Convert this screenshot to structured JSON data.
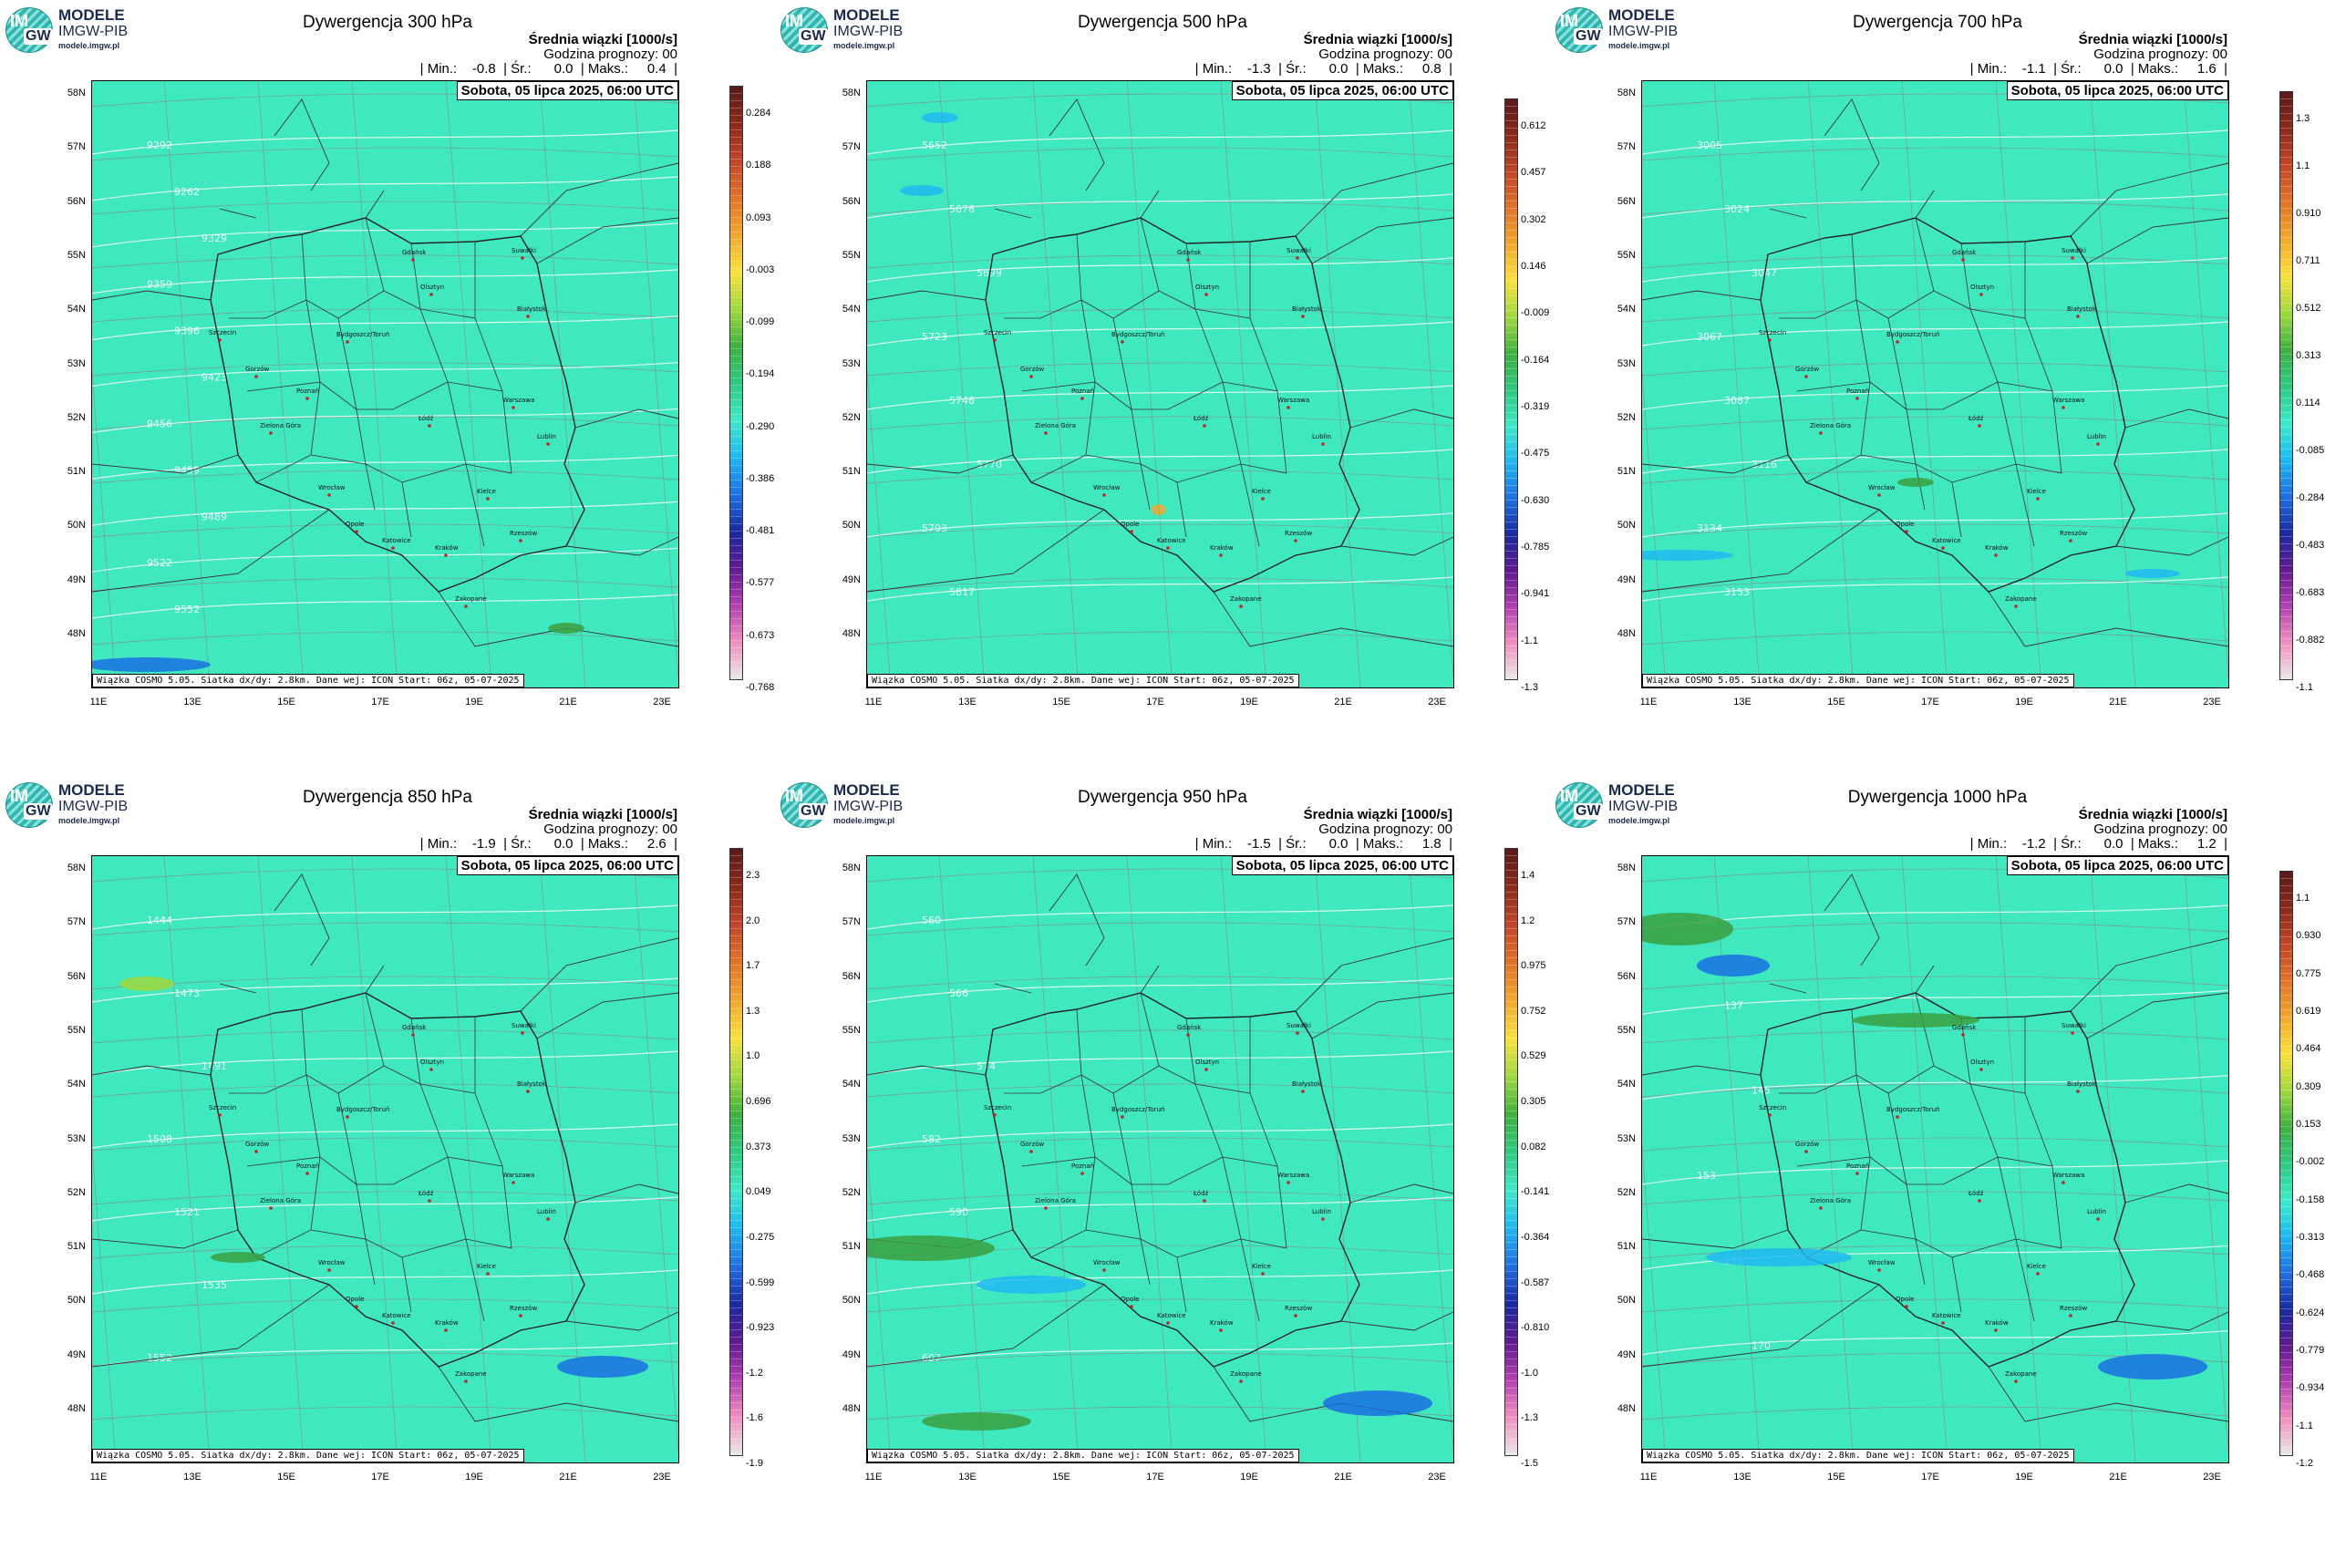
{
  "logo": {
    "line1": "MODELE",
    "line2": "IMGW-PIB",
    "line3": "modele.imgw.pl",
    "badge_top": "IM",
    "badge_bottom": "GW"
  },
  "common": {
    "subtitle": "Średnia wiązki [1000/s]",
    "forecast_hour": "Godzina prognozy: 00",
    "date": "Sobota, 05 lipca 2025, 06:00 UTC",
    "footer": "Wiązka COSMO 5.05. Siatka dx/dy: 2.8km. Dane wej: ICON Start: 06z, 05-07-2025",
    "lat_labels": [
      "58N",
      "57N",
      "56N",
      "55N",
      "54N",
      "53N",
      "52N",
      "51N",
      "50N",
      "49N",
      "48N"
    ],
    "lon_labels": [
      "11E",
      "13E",
      "15E",
      "17E",
      "19E",
      "21E",
      "23E"
    ],
    "cities": [
      "Gdańsk",
      "Suwałki",
      "Olsztyn",
      "Białystok",
      "Szczecin",
      "Bydgoszcz/Toruń",
      "Gorzów",
      "Poznań",
      "Warszawa",
      "Łódź",
      "Zielona Góra",
      "Lublin",
      "Wrocław",
      "Kielce",
      "Opole",
      "Rzeszów",
      "Katowice",
      "Kraków",
      "Zakopane"
    ]
  },
  "panels": [
    {
      "title": "Dywergencja 300 hPa",
      "stats": "| Min.:    -0.8  | Śr.:      0.0  | Maks.:     0.4  |",
      "colorbar": [
        "0.284",
        "0.188",
        "0.093",
        "-0.003",
        "-0.099",
        "-0.194",
        "-0.290",
        "-0.386",
        "-0.481",
        "-0.577",
        "-0.673",
        "-0.768"
      ],
      "contours": [
        "9292",
        "9262",
        "9329",
        "9359",
        "9396",
        "9423",
        "9456",
        "9459",
        "9489",
        "9522",
        "9552"
      ]
    },
    {
      "title": "Dywergencja 500 hPa",
      "stats": "| Min.:    -1.3  | Śr.:      0.0  | Maks.:     0.8  |",
      "colorbar": [
        "0.612",
        "0.457",
        "0.302",
        "0.146",
        "-0.009",
        "-0.164",
        "-0.319",
        "-0.475",
        "-0.630",
        "-0.785",
        "-0.941",
        "-1.1",
        "-1.3"
      ],
      "contours": [
        "5652",
        "5676",
        "5699",
        "5723",
        "5746",
        "5770",
        "5793",
        "5817"
      ]
    },
    {
      "title": "Dywergencja 700 hPa",
      "stats": "| Min.:    -1.1  | Śr.:      0.0  | Maks.:     1.6  |",
      "colorbar": [
        "1.3",
        "1.1",
        "0.910",
        "0.711",
        "0.512",
        "0.313",
        "0.114",
        "-0.085",
        "-0.284",
        "-0.483",
        "-0.683",
        "-0.882",
        "-1.1"
      ],
      "contours": [
        "3005",
        "3024",
        "3047",
        "3067",
        "3087",
        "3116",
        "3134",
        "3153"
      ]
    },
    {
      "title": "Dywergencja 850 hPa",
      "stats": "| Min.:    -1.9  | Śr.:      0.0  | Maks.:     2.6  |",
      "colorbar": [
        "2.3",
        "2.0",
        "1.7",
        "1.3",
        "1.0",
        "0.696",
        "0.373",
        "0.049",
        "-0.275",
        "-0.599",
        "-0.923",
        "-1.2",
        "-1.6",
        "-1.9"
      ],
      "contours": [
        "1444",
        "1473",
        "1491",
        "1508",
        "1521",
        "1535",
        "1552"
      ]
    },
    {
      "title": "Dywergencja 950 hPa",
      "stats": "| Min.:    -1.5  | Śr.:      0.0  | Maks.:     1.8  |",
      "colorbar": [
        "1.4",
        "1.2",
        "0.975",
        "0.752",
        "0.529",
        "0.305",
        "0.082",
        "-0.141",
        "-0.364",
        "-0.587",
        "-0.810",
        "-1.0",
        "-1.3",
        "-1.5"
      ],
      "contours": [
        "560",
        "566",
        "574",
        "582",
        "590",
        "599",
        "607"
      ]
    },
    {
      "title": "Dywergencja 1000 hPa",
      "stats": "| Min.:    -1.2  | Śr.:      0.0  | Maks.:     1.2  |",
      "colorbar": [
        "1.1",
        "0.930",
        "0.775",
        "0.619",
        "0.464",
        "0.309",
        "0.153",
        "-0.002",
        "-0.158",
        "-0.313",
        "-0.468",
        "-0.624",
        "-0.779",
        "-0.934",
        "-1.1",
        "-1.2"
      ],
      "contours": [
        "129",
        "137",
        "145",
        "153",
        "161",
        "170"
      ]
    }
  ]
}
